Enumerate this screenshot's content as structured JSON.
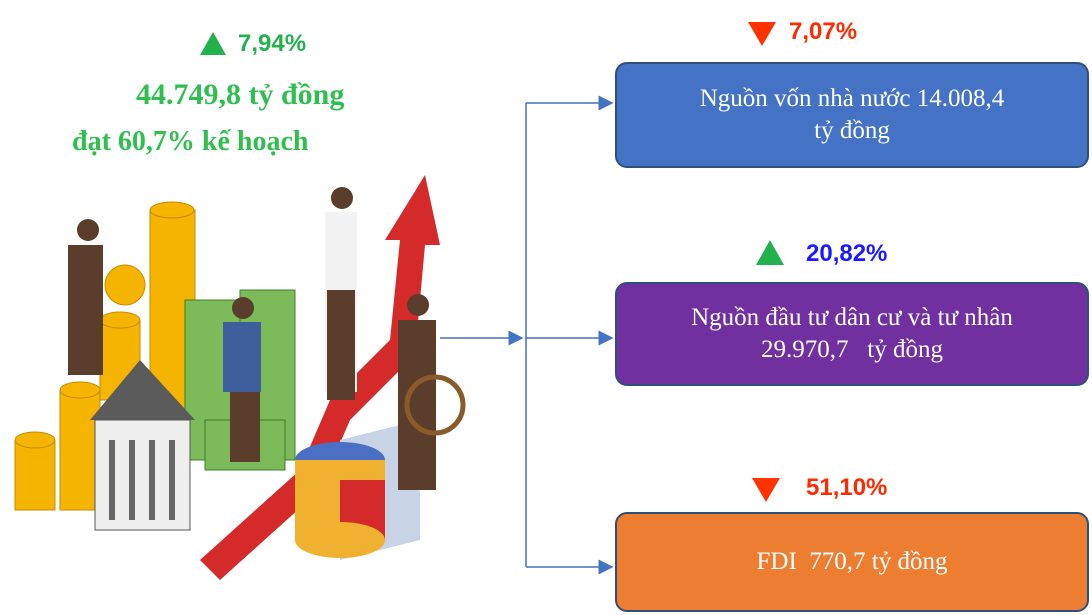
{
  "total": {
    "change": "7,94%",
    "amount": "44.749,8 tỷ đồng",
    "plan": "đạt 60,7% kế hoạch"
  },
  "sources": [
    {
      "change": "7,07%",
      "lines": [
        "Nguồn vốn nhà nước 14.008,4",
        "tỷ đồng"
      ]
    },
    {
      "change": "20,82%",
      "lines": [
        "Nguồn đầu tư dân cư và tư nhân",
        "29.970,7   tỷ đồng"
      ]
    },
    {
      "change": "51,10%",
      "lines": [
        "FDI  770,7 tỷ đồng"
      ]
    }
  ]
}
